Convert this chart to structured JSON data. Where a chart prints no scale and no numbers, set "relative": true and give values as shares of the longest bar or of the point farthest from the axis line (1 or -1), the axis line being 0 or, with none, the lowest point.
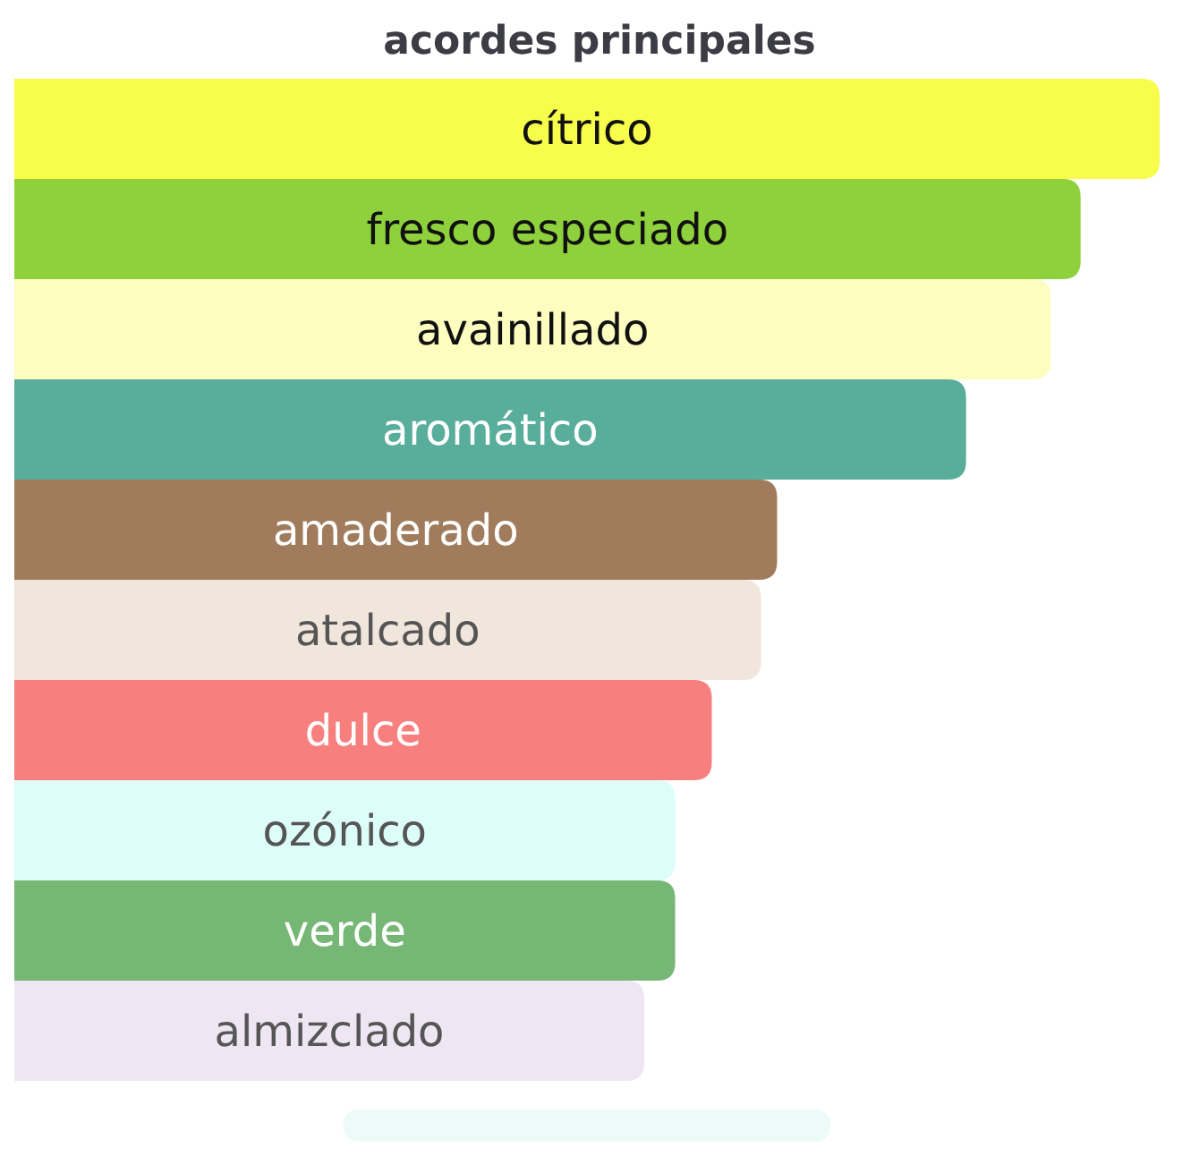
{
  "chart_data": {
    "type": "bar",
    "orientation": "horizontal",
    "relative": true,
    "title": "acordes principales",
    "categories": [
      "cítrico",
      "fresco especiado",
      "avainillado",
      "aromático",
      "amaderado",
      "atalcado",
      "dulce",
      "ozónico",
      "verde",
      "almizclado"
    ],
    "values": [
      1,
      0.931,
      0.905,
      0.831,
      0.666,
      0.652,
      0.609,
      0.577,
      0.577,
      0.55
    ],
    "colors": [
      "#f8fd4c",
      "#8ed13c",
      "#fdfdc0",
      "#59ad9b",
      "#a07c5c",
      "#f1e6dc",
      "#f7807f",
      "#ddfdfb",
      "#76b776",
      "#eee6f2"
    ]
  }
}
